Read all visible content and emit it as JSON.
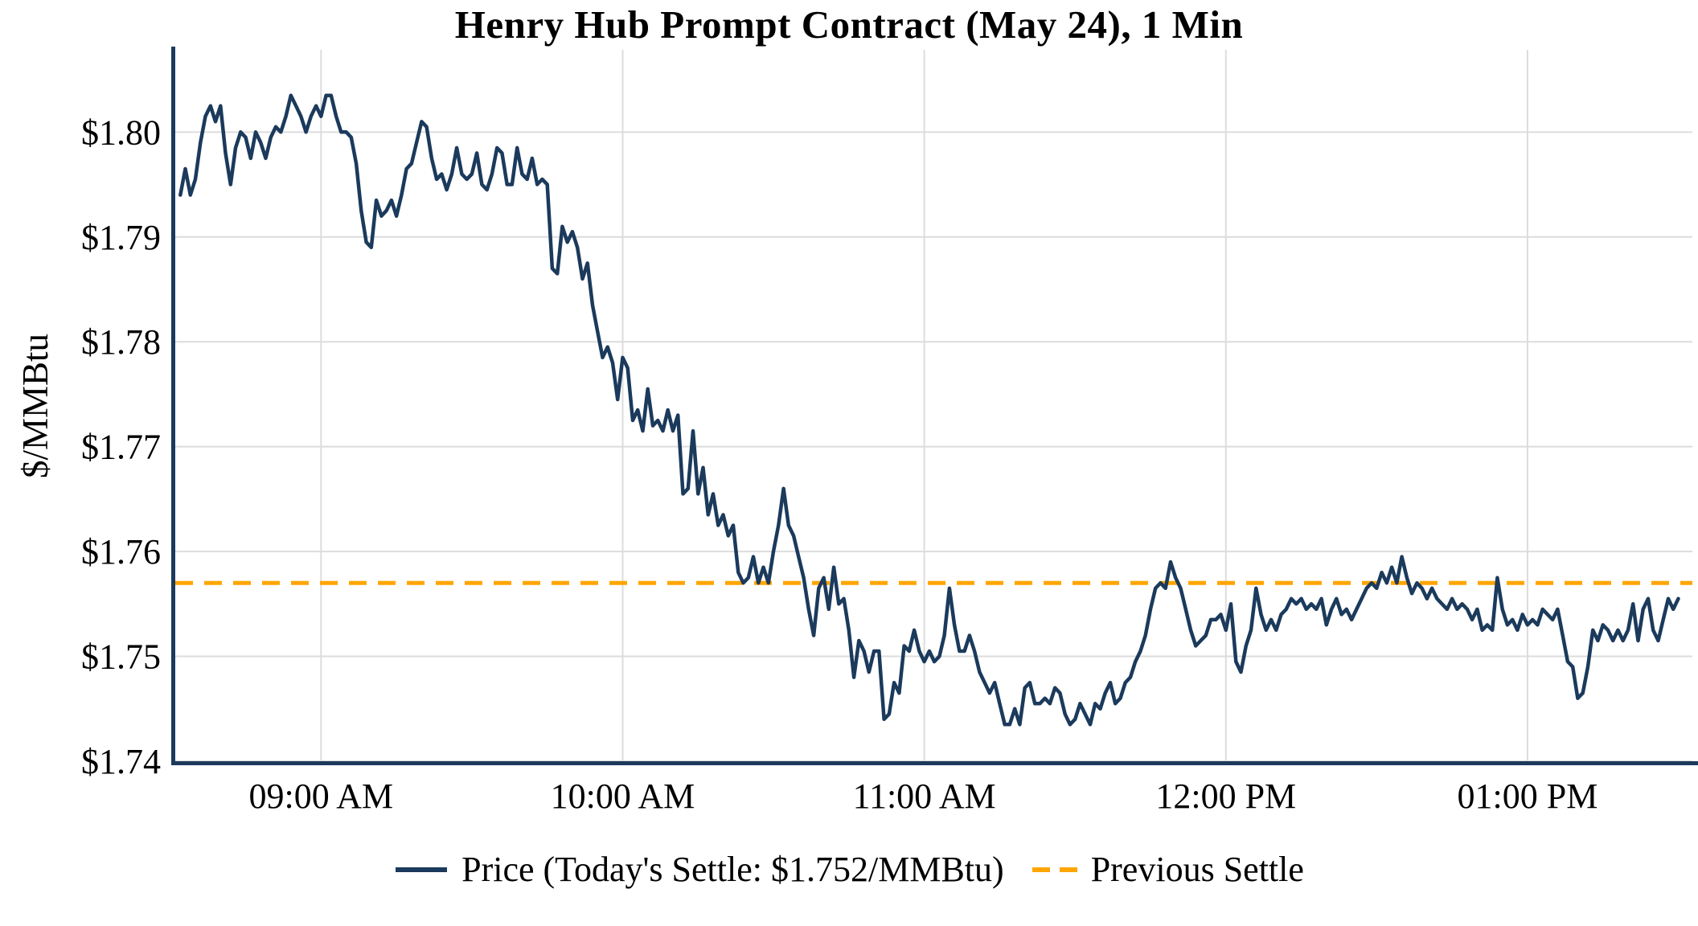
{
  "chart_data": {
    "type": "line",
    "title": "Henry Hub Prompt Contract (May 24), 1 Min",
    "xlabel": "",
    "ylabel": "$/MMBtu",
    "ylim": [
      1.74,
      1.807
    ],
    "xlim_minutes": [
      511,
      812
    ],
    "grid": true,
    "legend_position": "bottom",
    "xticks": {
      "minutes": [
        540,
        600,
        660,
        720,
        780
      ],
      "labels": [
        "09:00 AM",
        "10:00 AM",
        "11:00 AM",
        "12:00 PM",
        "01:00 PM"
      ]
    },
    "yticks": {
      "values": [
        1.74,
        1.75,
        1.76,
        1.77,
        1.78,
        1.79,
        1.8
      ],
      "labels": [
        "$1.74",
        "$1.75",
        "$1.76",
        "$1.77",
        "$1.78",
        "$1.79",
        "$1.80"
      ]
    },
    "colors": {
      "price_line": "#1B3A5C",
      "previous_settle_line": "#FFA500",
      "grid": "#DCDCDC",
      "axis": "#1B3A5C",
      "text": "#000000"
    },
    "previous_settle": 1.757,
    "todays_settle": 1.752,
    "legend": {
      "price_label": "Price (Today's Settle: $1.752/MMBtu)",
      "settle_label": "Previous Settle"
    },
    "price_series": {
      "name": "Price",
      "start_minute": 512,
      "interval_minutes": 1,
      "values": [
        1.794,
        1.7965,
        1.794,
        1.7955,
        1.799,
        1.8015,
        1.8025,
        1.801,
        1.8025,
        1.798,
        1.795,
        1.7985,
        1.8,
        1.7995,
        1.7975,
        1.8,
        1.799,
        1.7975,
        1.7995,
        1.8005,
        1.8,
        1.8015,
        1.8035,
        1.8025,
        1.8015,
        1.8,
        1.8015,
        1.8025,
        1.8015,
        1.8035,
        1.8035,
        1.8015,
        1.8,
        1.8,
        1.7995,
        1.797,
        1.7925,
        1.7895,
        1.789,
        1.7935,
        1.792,
        1.7925,
        1.7935,
        1.792,
        1.794,
        1.7965,
        1.797,
        1.799,
        1.801,
        1.8005,
        1.7975,
        1.7955,
        1.796,
        1.7945,
        1.796,
        1.7985,
        1.796,
        1.7955,
        1.796,
        1.798,
        1.795,
        1.7945,
        1.796,
        1.7985,
        1.798,
        1.795,
        1.795,
        1.7985,
        1.796,
        1.7955,
        1.7975,
        1.795,
        1.7955,
        1.795,
        1.787,
        1.7865,
        1.791,
        1.7895,
        1.7905,
        1.789,
        1.786,
        1.7875,
        1.7835,
        1.781,
        1.7785,
        1.7795,
        1.778,
        1.7745,
        1.7785,
        1.7775,
        1.7725,
        1.7735,
        1.7715,
        1.7755,
        1.772,
        1.7725,
        1.7715,
        1.7735,
        1.7715,
        1.773,
        1.7655,
        1.766,
        1.7715,
        1.7655,
        1.768,
        1.7635,
        1.7655,
        1.7625,
        1.7635,
        1.7615,
        1.7625,
        1.758,
        1.757,
        1.7575,
        1.7595,
        1.757,
        1.7585,
        1.757,
        1.76,
        1.7625,
        1.766,
        1.7625,
        1.7615,
        1.7595,
        1.7575,
        1.7545,
        1.752,
        1.7565,
        1.7575,
        1.7545,
        1.7585,
        1.755,
        1.7555,
        1.7525,
        1.748,
        1.7515,
        1.7505,
        1.7485,
        1.7505,
        1.7505,
        1.744,
        1.7445,
        1.7475,
        1.7465,
        1.751,
        1.7505,
        1.7525,
        1.7505,
        1.7495,
        1.7505,
        1.7495,
        1.75,
        1.752,
        1.7565,
        1.753,
        1.7505,
        1.7505,
        1.752,
        1.7505,
        1.7485,
        1.7475,
        1.7465,
        1.7475,
        1.7455,
        1.7435,
        1.7435,
        1.745,
        1.7435,
        1.747,
        1.7475,
        1.7455,
        1.7455,
        1.746,
        1.7455,
        1.747,
        1.7465,
        1.7445,
        1.7435,
        1.744,
        1.7455,
        1.7445,
        1.7435,
        1.7455,
        1.745,
        1.7465,
        1.7475,
        1.7455,
        1.746,
        1.7475,
        1.748,
        1.7495,
        1.7505,
        1.752,
        1.7545,
        1.7565,
        1.757,
        1.7565,
        1.759,
        1.7575,
        1.7565,
        1.7545,
        1.7525,
        1.751,
        1.7515,
        1.752,
        1.7535,
        1.7535,
        1.754,
        1.7525,
        1.755,
        1.7495,
        1.7485,
        1.751,
        1.7525,
        1.7565,
        1.754,
        1.7525,
        1.7535,
        1.7525,
        1.754,
        1.7545,
        1.7555,
        1.755,
        1.7555,
        1.7545,
        1.755,
        1.7545,
        1.7555,
        1.753,
        1.7545,
        1.7555,
        1.754,
        1.7545,
        1.7535,
        1.7545,
        1.7555,
        1.7565,
        1.757,
        1.7565,
        1.758,
        1.757,
        1.7585,
        1.757,
        1.7595,
        1.7575,
        1.756,
        1.757,
        1.7565,
        1.7555,
        1.7565,
        1.7555,
        1.755,
        1.7545,
        1.7555,
        1.7545,
        1.755,
        1.7545,
        1.7535,
        1.7545,
        1.7525,
        1.753,
        1.7525,
        1.7575,
        1.7545,
        1.753,
        1.7535,
        1.7525,
        1.754,
        1.753,
        1.7535,
        1.753,
        1.7545,
        1.754,
        1.7535,
        1.7545,
        1.752,
        1.7495,
        1.749,
        1.746,
        1.7465,
        1.749,
        1.7525,
        1.7515,
        1.753,
        1.7525,
        1.7515,
        1.7525,
        1.7515,
        1.7525,
        1.755,
        1.7515,
        1.7545,
        1.7555,
        1.7525,
        1.7515,
        1.7535,
        1.7555,
        1.7545,
        1.7555
      ]
    }
  }
}
